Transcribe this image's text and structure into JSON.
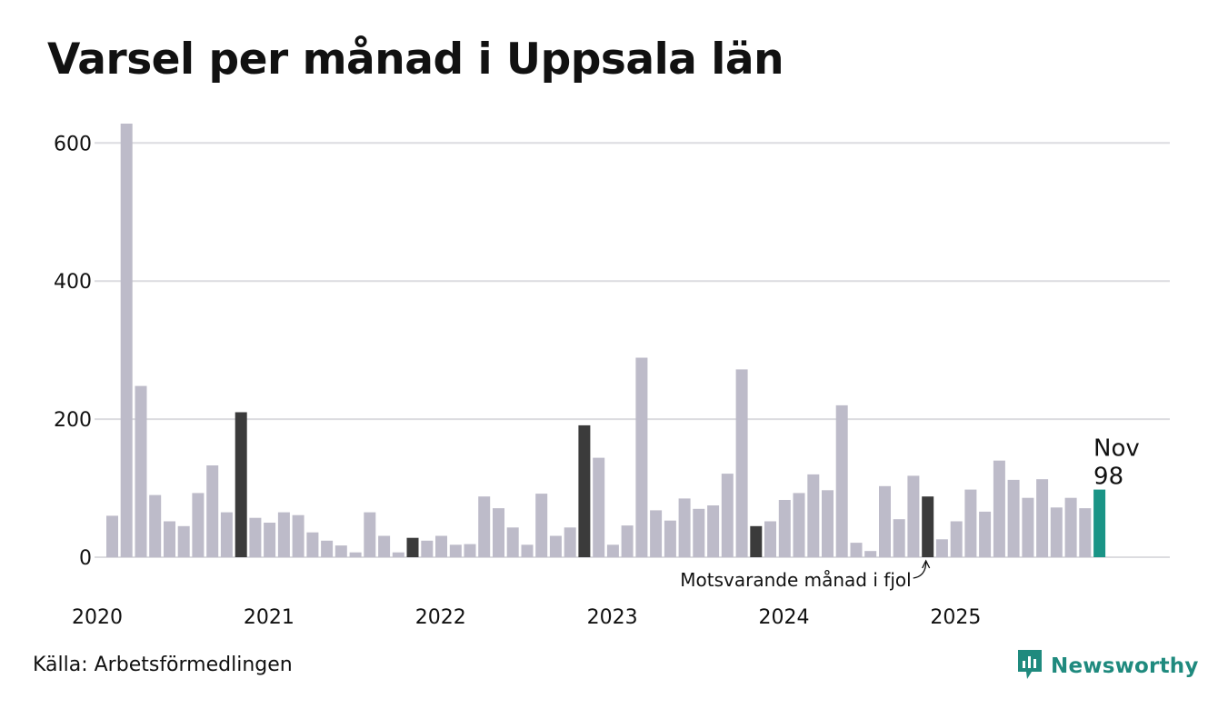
{
  "title": "Varsel per månad i Uppsala län",
  "source": "Källa: Arbetsförmedlingen",
  "brand": {
    "name": "Newsworthy",
    "icon": "newsworthy-logo-icon",
    "color": "#1f8a7e"
  },
  "chart_data": {
    "type": "bar",
    "title": "Varsel per månad i Uppsala län",
    "xlabel": "",
    "ylabel": "",
    "ylim": [
      0,
      650
    ],
    "yticks": [
      0,
      200,
      400,
      600
    ],
    "year_labels": [
      "2020",
      "2021",
      "2022",
      "2023",
      "2024",
      "2025"
    ],
    "values": [
      60,
      628,
      248,
      90,
      52,
      45,
      93,
      133,
      65,
      210,
      57,
      50,
      65,
      61,
      36,
      24,
      17,
      7,
      65,
      31,
      7,
      28,
      24,
      31,
      18,
      19,
      88,
      71,
      43,
      18,
      92,
      31,
      43,
      191,
      144,
      18,
      46,
      289,
      68,
      53,
      85,
      70,
      75,
      121,
      272,
      45,
      52,
      83,
      93,
      120,
      97,
      220,
      21,
      9,
      103,
      55,
      118,
      88,
      26,
      52,
      98,
      66,
      140,
      112,
      86,
      113,
      72,
      86,
      71,
      98
    ],
    "highlight_november_indices": [
      9,
      21,
      33,
      45,
      57
    ],
    "last_index": 69,
    "last_label": {
      "month": "Nov",
      "value": "98"
    },
    "annotation": "Motsvarande månad i fjol",
    "colors": {
      "bar": "#bdbbc9",
      "november": "#3b3b3b",
      "current": "#1a9486",
      "grid": "#dcdce0"
    }
  }
}
